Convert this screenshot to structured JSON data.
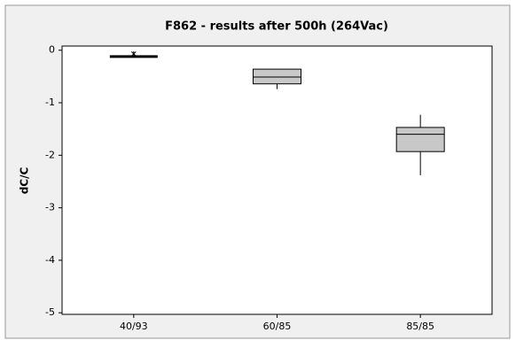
{
  "chart_data": {
    "type": "box",
    "title": "F862 - results after 500h (264Vac)",
    "ylabel": "dC/C",
    "categories": [
      "40/93",
      "60/85",
      "85/85"
    ],
    "boxes": [
      {
        "min": -0.12,
        "q1": -0.12,
        "median": -0.12,
        "q3": -0.12,
        "max": -0.12,
        "outliers": [
          -0.07
        ]
      },
      {
        "min": -0.74,
        "q1": -0.64,
        "median": -0.51,
        "q3": -0.36,
        "max": -0.36,
        "outliers": []
      },
      {
        "min": -2.38,
        "q1": -1.93,
        "median": -1.6,
        "q3": -1.47,
        "max": -1.23,
        "outliers": []
      }
    ],
    "color": "#c8c8c8",
    "ylim": [
      -5.03,
      0.08
    ],
    "yticks": [
      -5,
      -4,
      -3,
      -2,
      -1,
      0
    ],
    "grid": false
  }
}
